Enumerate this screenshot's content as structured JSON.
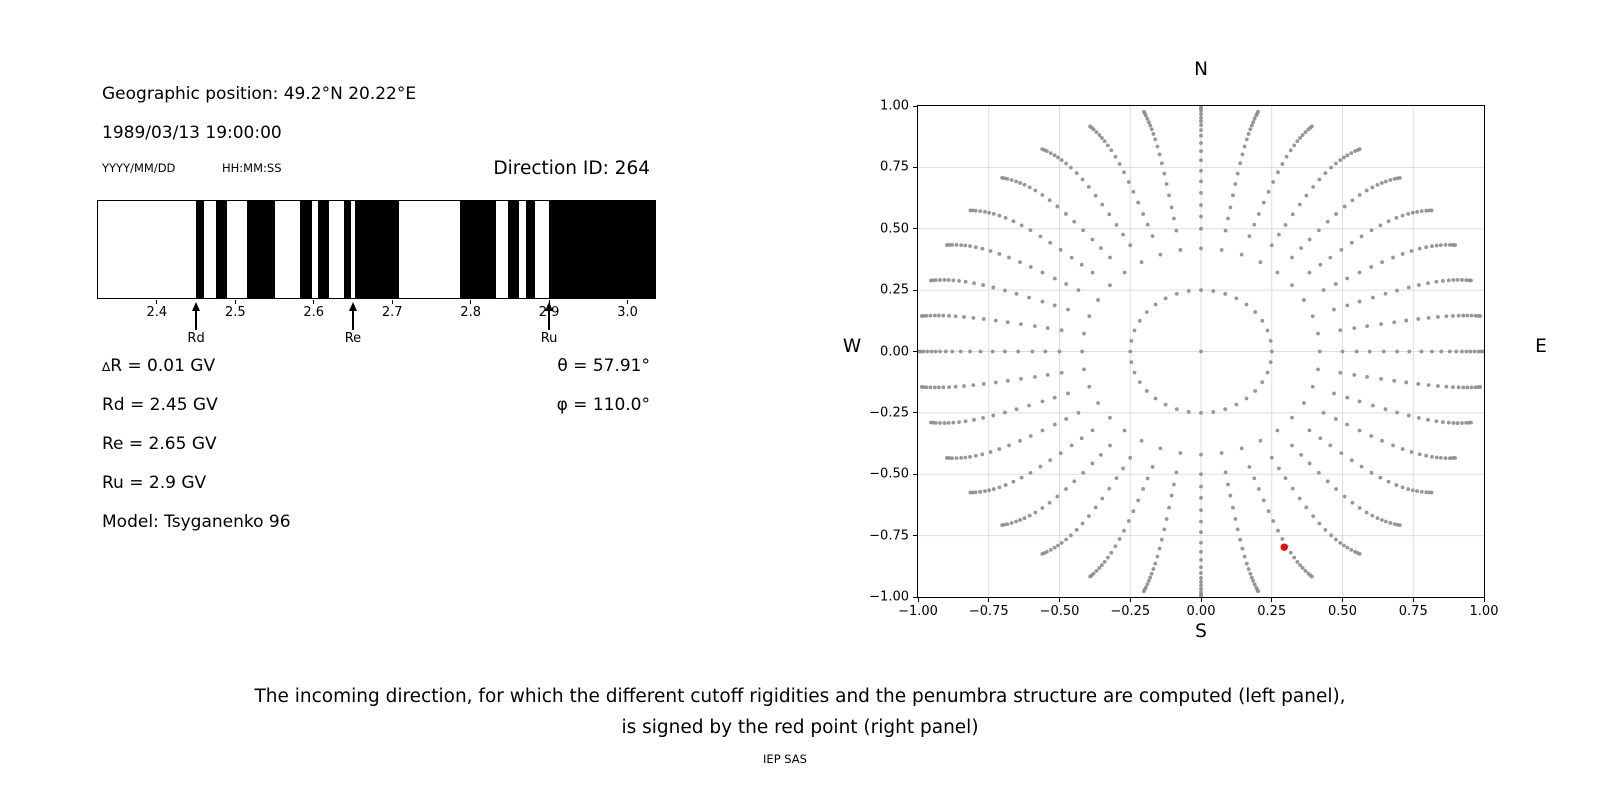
{
  "header": {
    "geo_position": "Geographic position: 49.2°N 20.22°E",
    "datetime": "1989/03/13 19:00:00",
    "date_format_hint": "YYYY/MM/DD",
    "time_format_hint": "HH:MM:SS",
    "direction_id": "Direction ID: 264"
  },
  "params": {
    "lines": [
      "∆R = 0.01 GV",
      "Rd = 2.45 GV",
      "Re = 2.65 GV",
      "Ru = 2.9 GV",
      "Model: Tsyganenko 96"
    ],
    "angle_lines": [
      "θ = 57.91°",
      "φ = 110.0°"
    ]
  },
  "chart_data": [
    {
      "type": "bar",
      "title": "penumbra-structure-left-panel",
      "xlim": [
        2.325,
        3.035
      ],
      "x_ticks": [
        2.4,
        2.5,
        2.6,
        2.7,
        2.8,
        2.9,
        3.0
      ],
      "x_tick_labels": [
        "2.4",
        "2.5",
        "2.6",
        "2.7",
        "2.8",
        "2.9",
        "3.0"
      ],
      "bands_allowed_gv": [
        [
          2.45,
          2.46
        ],
        [
          2.475,
          2.49
        ],
        [
          2.515,
          2.55
        ],
        [
          2.583,
          2.598
        ],
        [
          2.605,
          2.62
        ],
        [
          2.638,
          2.647
        ],
        [
          2.653,
          2.709
        ],
        [
          2.787,
          2.832
        ],
        [
          2.847,
          2.862
        ],
        [
          2.871,
          2.882
        ],
        [
          2.9,
          3.035
        ]
      ],
      "markers": [
        {
          "label": "Rd",
          "gv": 2.45
        },
        {
          "label": "Re",
          "gv": 2.65
        },
        {
          "label": "Ru",
          "gv": 2.9
        }
      ],
      "band_color": "#000000",
      "background_color": "#ffffff"
    },
    {
      "type": "scatter",
      "title": "incoming-direction-grid-right-panel",
      "xlim": [
        -1,
        1
      ],
      "ylim": [
        -1,
        1
      ],
      "grid": "on",
      "grid_step": 0.25,
      "x_tick_labels": [
        "−1.00",
        "−0.75",
        "−0.50",
        "−0.25",
        "0.00",
        "0.25",
        "0.50",
        "0.75",
        "1.00"
      ],
      "x_tick_values": [
        -1,
        -0.75,
        -0.5,
        -0.25,
        0,
        0.25,
        0.5,
        0.75,
        1
      ],
      "y_tick_labels": [
        "1.00",
        "0.75",
        "0.50",
        "0.25",
        "0.00",
        "−0.25",
        "−0.50",
        "−0.75",
        "−1.00"
      ],
      "y_tick_values": [
        1,
        0.75,
        0.5,
        0.25,
        0,
        -0.25,
        -0.5,
        -0.75,
        -1
      ],
      "compass": {
        "n": "N",
        "s": "S",
        "e": "E",
        "w": "W"
      },
      "grid_points": {
        "azimuth_count": 36,
        "azimuth_step_deg": 10,
        "radii": [
          0.25,
          0.42,
          0.5,
          0.55,
          0.596,
          0.646,
          0.693,
          0.736,
          0.779,
          0.816,
          0.849,
          0.879,
          0.902,
          0.922,
          0.938,
          0.952,
          0.967,
          0.981,
          0.99,
          0.997
        ],
        "center_point": true,
        "twist_max_deg": 5,
        "twist_power": 8
      },
      "red_point": {
        "x": 0.294,
        "y": -0.797
      },
      "dot_color": "#8c8c8c",
      "red_color": "#e01010",
      "grid_color": "#dedede"
    }
  ],
  "caption": {
    "line1": "The incoming direction, for which the different cutoff rigidities and the penumbra structure are computed (left panel),",
    "line2": "is signed by the red point (right panel)",
    "footer": "IEP SAS"
  }
}
